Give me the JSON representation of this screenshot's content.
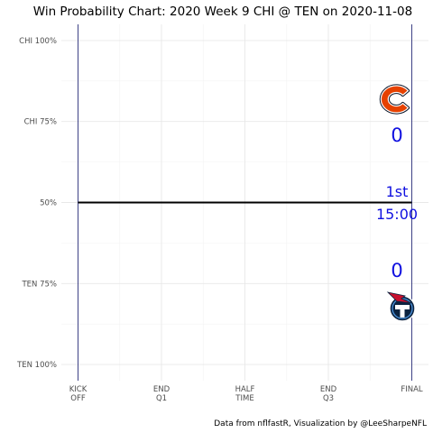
{
  "chart_data": {
    "type": "line",
    "title": "Win Probability Chart: 2020 Week 9 CHI @ TEN on 2020-11-08",
    "caption": "Data from nflfastR, Visualization by @LeeSharpeNFL",
    "xlabel": "",
    "ylabel": "",
    "x_ticks": [
      {
        "value": 0,
        "lines": [
          "KICK",
          "OFF"
        ]
      },
      {
        "value": 15,
        "lines": [
          "END",
          "Q1"
        ]
      },
      {
        "value": 30,
        "lines": [
          "HALF",
          "TIME"
        ]
      },
      {
        "value": 45,
        "lines": [
          "END",
          "Q3"
        ]
      },
      {
        "value": 60,
        "lines": [
          "FINAL"
        ]
      }
    ],
    "xlim": [
      -3,
      63
    ],
    "y_ticks": [
      {
        "value": 1.0,
        "label": "CHI 100%"
      },
      {
        "value": 0.75,
        "label": "CHI 75%"
      },
      {
        "value": 0.5,
        "label": "50%"
      },
      {
        "value": 0.25,
        "label": "TEN 75%"
      },
      {
        "value": 0.0,
        "label": "TEN 100%"
      }
    ],
    "ylim": [
      -0.05,
      1.05
    ],
    "grid": true,
    "series": [
      {
        "values": [
          [
            0,
            0.5
          ],
          [
            60,
            0.5
          ]
        ],
        "color": "#000000"
      }
    ],
    "vlines": [
      {
        "x": 0,
        "color": "#2b2f7a"
      },
      {
        "x": 60,
        "color": "#2b2f7a"
      }
    ],
    "annotations": {
      "away_team": "CHI",
      "home_team": "TEN",
      "away_score": "0",
      "home_score": "0",
      "quarter": "1st",
      "clock": "15:00",
      "text_color": "#1010e0",
      "away_logo_colors": {
        "primary": "#e64100",
        "secondary": "#0b162a"
      },
      "home_logo_colors": {
        "primary": "#0c2340",
        "secondary": "#4b92db",
        "accent": "#c8102e"
      }
    }
  }
}
